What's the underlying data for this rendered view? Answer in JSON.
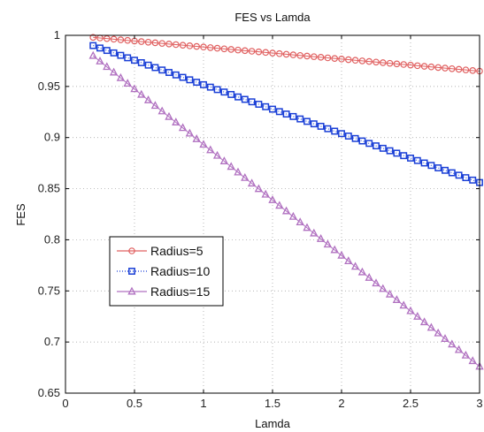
{
  "chart_data": {
    "type": "line",
    "title": "FES vs Lamda",
    "xlabel": "Lamda",
    "ylabel": "FES",
    "xlim": [
      0,
      3
    ],
    "ylim": [
      0.65,
      1
    ],
    "xticks": [
      0,
      0.5,
      1,
      1.5,
      2,
      2.5,
      3
    ],
    "xtick_labels": [
      "0",
      "0.5",
      "1",
      "1.5",
      "2",
      "2.5",
      "3"
    ],
    "yticks": [
      0.65,
      0.7,
      0.75,
      0.8,
      0.85,
      0.9,
      0.95,
      1
    ],
    "ytick_labels": [
      "0.65",
      "0.7",
      "0.75",
      "0.8",
      "0.85",
      "0.9",
      "0.95",
      "1"
    ],
    "grid": true,
    "legend_position": "center-left",
    "x_range": [
      0.2,
      3
    ],
    "x_step": 0.05,
    "series": [
      {
        "name": "Radius=5",
        "color": "#e06060",
        "marker": "circle",
        "line_style": "solid",
        "y_start": 0.998,
        "y_end": 0.965
      },
      {
        "name": "Radius=10",
        "color": "#1a3fd6",
        "marker": "square",
        "line_style": "dotted",
        "y_start": 0.99,
        "y_end": 0.856
      },
      {
        "name": "Radius=15",
        "color": "#b070c0",
        "marker": "triangle",
        "line_style": "solid",
        "y_start": 0.98,
        "y_end": 0.676
      }
    ]
  }
}
